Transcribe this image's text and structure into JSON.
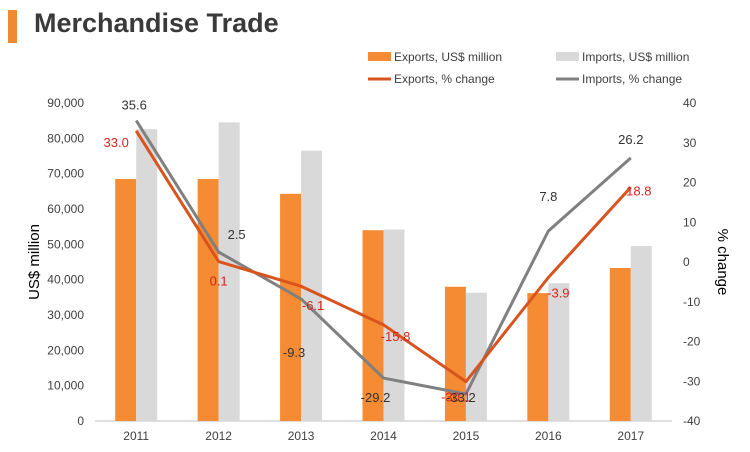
{
  "header": {
    "title": "Merchandise Trade",
    "accent_color": "#f08a30"
  },
  "chart_data": {
    "type": "bar",
    "categories": [
      "2011",
      "2012",
      "2013",
      "2014",
      "2015",
      "2016",
      "2017"
    ],
    "ylabel": "US$ million",
    "y2label": "% change",
    "ylim": [
      0,
      90000
    ],
    "y2lim": [
      -40,
      40
    ],
    "yticks": [
      "0",
      "10,000",
      "20,000",
      "30,000",
      "40,000",
      "50,000",
      "60,000",
      "70,000",
      "80,000",
      "90,000"
    ],
    "y2ticks": [
      "-40",
      "-30",
      "-20",
      "-10",
      "0",
      "10",
      "20",
      "30",
      "40"
    ],
    "legend_position": "top-right",
    "grid": false,
    "series": [
      {
        "name": "Exports, US$ million",
        "kind": "bar",
        "axis": "left",
        "color": "#f58b32",
        "values": [
          68500,
          68500,
          64300,
          54000,
          38000,
          36200,
          43300
        ]
      },
      {
        "name": "Imports, US$ million",
        "kind": "bar",
        "axis": "left",
        "color": "#d9d9d9",
        "values": [
          82600,
          84500,
          76500,
          54200,
          36300,
          39000,
          49500
        ]
      },
      {
        "name": "Exports, % change",
        "kind": "line",
        "axis": "right",
        "color": "#d9531e",
        "label_color": "#d9231e",
        "values": [
          33.0,
          0.1,
          -6.1,
          -15.8,
          -30.1,
          -3.9,
          18.8
        ],
        "labels": [
          "33.0",
          "0.1",
          "-6.1",
          "-15.8",
          "-30.1",
          "-3.9",
          "18.8"
        ]
      },
      {
        "name": "Imports, % change",
        "kind": "line",
        "axis": "right",
        "color": "#808080",
        "label_color": "#333333",
        "values": [
          35.6,
          2.5,
          -9.3,
          -29.2,
          -33.2,
          7.8,
          26.2
        ],
        "labels": [
          "35.6",
          "2.5",
          "-9.3",
          "-29.2",
          "-33.2",
          "7.8",
          "26.2"
        ]
      }
    ]
  }
}
